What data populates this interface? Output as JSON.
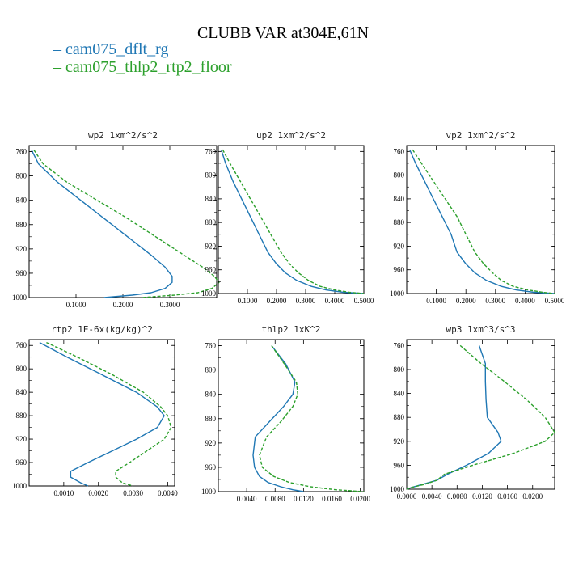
{
  "figure": {
    "title": "CLUBB VAR at304E,61N",
    "legend": [
      {
        "label": "cam075_dflt_rg",
        "color": "#1f77b4"
      },
      {
        "label": "cam075_thlp2_rtp2_floor",
        "color": "#2ca02c"
      }
    ]
  },
  "chart_data": [
    {
      "type": "line",
      "title": "wp2   1xm^2/s^2",
      "xlim": [
        0,
        0.4
      ],
      "ylim": [
        1000,
        750
      ],
      "yticks": [
        "760",
        "800",
        "840",
        "880",
        "920",
        "960",
        "1000"
      ],
      "xticks": [
        "0.1000",
        "0.2000",
        "0.3000"
      ],
      "xtick_values": [
        0.1,
        0.2,
        0.3
      ],
      "y": [
        757,
        780,
        810,
        840,
        870,
        900,
        930,
        950,
        965,
        975,
        985,
        992,
        996,
        1000
      ],
      "series": [
        {
          "name": "cam075_dflt_rg",
          "values": [
            0.005,
            0.02,
            0.06,
            0.11,
            0.16,
            0.21,
            0.26,
            0.29,
            0.305,
            0.305,
            0.29,
            0.26,
            0.22,
            0.16
          ]
        },
        {
          "name": "cam075_thlp2_rtp2_floor",
          "values": [
            0.01,
            0.03,
            0.08,
            0.145,
            0.21,
            0.27,
            0.33,
            0.37,
            0.395,
            0.405,
            0.39,
            0.36,
            0.31,
            0.24
          ]
        }
      ]
    },
    {
      "type": "line",
      "title": "up2   1xm^2/s^2",
      "xlim": [
        0,
        0.5
      ],
      "ylim": [
        1000,
        750
      ],
      "yticks": [
        "760",
        "800",
        "840",
        "880",
        "920",
        "960",
        "1000"
      ],
      "xticks": [
        "0.1000",
        "0.2000",
        "0.3000",
        "0.4000",
        "0.5000"
      ],
      "xtick_values": [
        0.1,
        0.2,
        0.3,
        0.4,
        0.5
      ],
      "y": [
        757,
        780,
        810,
        840,
        870,
        900,
        930,
        950,
        965,
        978,
        988,
        994,
        998,
        1000
      ],
      "series": [
        {
          "name": "cam075_dflt_rg",
          "values": [
            0.01,
            0.025,
            0.05,
            0.08,
            0.11,
            0.14,
            0.17,
            0.2,
            0.23,
            0.27,
            0.32,
            0.37,
            0.43,
            0.5
          ]
        },
        {
          "name": "cam075_thlp2_rtp2_floor",
          "values": [
            0.015,
            0.04,
            0.075,
            0.11,
            0.145,
            0.18,
            0.215,
            0.245,
            0.275,
            0.31,
            0.35,
            0.4,
            0.45,
            0.5
          ]
        }
      ]
    },
    {
      "type": "line",
      "title": "vp2   1xm^2/s^2",
      "xlim": [
        0,
        0.5
      ],
      "ylim": [
        1000,
        750
      ],
      "yticks": [
        "760",
        "800",
        "840",
        "880",
        "920",
        "960",
        "1000"
      ],
      "xticks": [
        "0.1000",
        "0.2000",
        "0.3000",
        "0.4000",
        "0.5000"
      ],
      "xtick_values": [
        0.1,
        0.2,
        0.3,
        0.4,
        0.5
      ],
      "y": [
        757,
        780,
        810,
        840,
        870,
        900,
        930,
        950,
        965,
        978,
        988,
        994,
        998,
        1000
      ],
      "series": [
        {
          "name": "cam075_dflt_rg",
          "values": [
            0.01,
            0.03,
            0.06,
            0.09,
            0.12,
            0.15,
            0.17,
            0.2,
            0.23,
            0.27,
            0.32,
            0.37,
            0.43,
            0.5
          ]
        },
        {
          "name": "cam075_thlp2_rtp2_floor",
          "values": [
            0.02,
            0.05,
            0.09,
            0.13,
            0.17,
            0.2,
            0.23,
            0.26,
            0.29,
            0.32,
            0.36,
            0.41,
            0.46,
            0.5
          ]
        }
      ]
    },
    {
      "type": "line",
      "title": "rtp2   1E-6x(kg/kg)^2",
      "xlim": [
        0,
        0.0042
      ],
      "ylim": [
        1000,
        750
      ],
      "yticks": [
        "760",
        "800",
        "840",
        "880",
        "920",
        "960",
        "1000"
      ],
      "xticks": [
        "0.0010",
        "0.0020",
        "0.0030",
        "0.0040"
      ],
      "xtick_values": [
        0.001,
        0.002,
        0.003,
        0.004
      ],
      "y": [
        755,
        780,
        810,
        840,
        865,
        880,
        900,
        920,
        940,
        960,
        975,
        985,
        995,
        1000
      ],
      "series": [
        {
          "name": "cam075_dflt_rg",
          "values": [
            0.0003,
            0.0011,
            0.0021,
            0.0031,
            0.0037,
            0.0039,
            0.0037,
            0.0031,
            0.0024,
            0.0017,
            0.0012,
            0.0012,
            0.0015,
            0.0017
          ]
        },
        {
          "name": "cam075_thlp2_rtp2_floor",
          "values": [
            0.0005,
            0.0014,
            0.0024,
            0.0033,
            0.0038,
            0.004,
            0.0041,
            0.0039,
            0.0034,
            0.0029,
            0.0025,
            0.0025,
            0.0027,
            0.003
          ]
        }
      ]
    },
    {
      "type": "line",
      "title": "thlp2   1xK^2",
      "xlim": [
        0,
        0.0205
      ],
      "ylim": [
        1000,
        750
      ],
      "yticks": [
        "760",
        "800",
        "840",
        "880",
        "920",
        "960",
        "1000"
      ],
      "xticks": [
        "0.0040",
        "0.0080",
        "0.0120",
        "0.0160",
        "0.0200"
      ],
      "xtick_values": [
        0.004,
        0.008,
        0.012,
        0.016,
        0.02
      ],
      "y": [
        760,
        790,
        820,
        840,
        860,
        885,
        910,
        940,
        960,
        975,
        985,
        992,
        997,
        1000
      ],
      "series": [
        {
          "name": "cam075_dflt_rg",
          "values": [
            0.0075,
            0.0095,
            0.0108,
            0.0105,
            0.0092,
            0.0072,
            0.0052,
            0.0049,
            0.0051,
            0.0058,
            0.007,
            0.0088,
            0.0105,
            0.012
          ]
        },
        {
          "name": "cam075_thlp2_rtp2_floor",
          "values": [
            0.0075,
            0.0093,
            0.011,
            0.0112,
            0.0105,
            0.0088,
            0.0068,
            0.0058,
            0.0062,
            0.0078,
            0.01,
            0.013,
            0.0165,
            0.0205
          ]
        }
      ]
    },
    {
      "type": "line",
      "title": "wp3   1xm^3/s^3",
      "xlim": [
        0,
        0.0235
      ],
      "ylim": [
        1000,
        750
      ],
      "yticks": [
        "760",
        "800",
        "840",
        "880",
        "920",
        "960",
        "1000"
      ],
      "xticks": [
        "0.0000",
        "0.0040",
        "0.0080",
        "0.0120",
        "0.0160",
        "0.0200"
      ],
      "xtick_values": [
        0,
        0.004,
        0.008,
        0.012,
        0.016,
        0.02
      ],
      "y": [
        760,
        790,
        820,
        850,
        880,
        905,
        920,
        940,
        960,
        975,
        985,
        992,
        997,
        1000
      ],
      "series": [
        {
          "name": "cam075_dflt_rg",
          "values": [
            0.0115,
            0.0125,
            0.0125,
            0.0126,
            0.0128,
            0.0145,
            0.015,
            0.013,
            0.0095,
            0.0065,
            0.0048,
            0.0025,
            0.0008,
            0.0
          ]
        },
        {
          "name": "cam075_thlp2_rtp2_floor",
          "values": [
            0.0085,
            0.0118,
            0.0155,
            0.019,
            0.022,
            0.0235,
            0.022,
            0.017,
            0.0105,
            0.006,
            0.0048,
            0.0028,
            0.0008,
            0.0
          ]
        }
      ]
    }
  ]
}
